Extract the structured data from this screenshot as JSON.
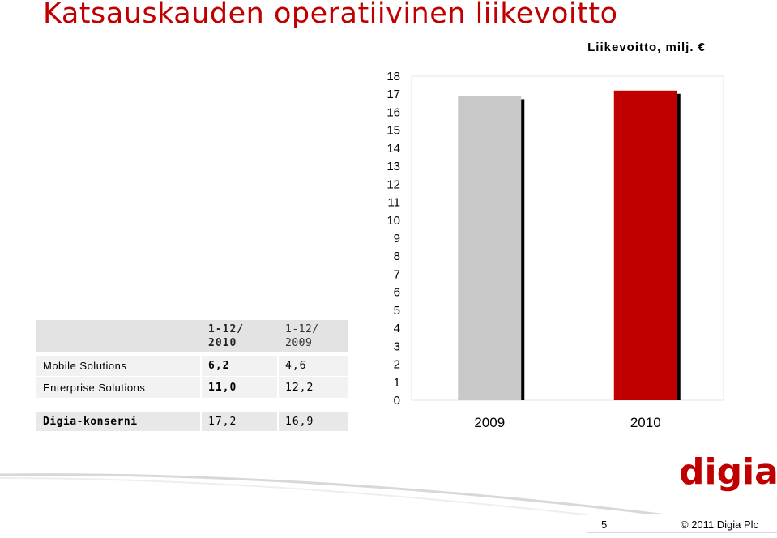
{
  "title": "Katsauskauden operatiivinen liikevoitto",
  "unit_label": "Liikevoitto, milj. €",
  "table": {
    "headers": [
      "",
      "1-12/\n2010",
      "1-12/\n2009"
    ],
    "header_2010": {
      "line1": "1-12/",
      "line2": "2010"
    },
    "header_2009": {
      "line1": "1-12/",
      "line2": "2009"
    },
    "rows": [
      {
        "label": "Mobile Solutions",
        "v2010": "6,2",
        "v2009": "4,6"
      },
      {
        "label": "Enterprise Solutions",
        "v2010": "11,0",
        "v2009": "12,2"
      },
      {
        "label": "Digia-konserni",
        "v2010": "17,2",
        "v2009": "16,9"
      }
    ]
  },
  "chart_data": {
    "type": "bar",
    "categories": [
      "2009",
      "2010"
    ],
    "values": [
      16.9,
      17.2
    ],
    "colors": [
      "#c8c8c8",
      "#c00000"
    ],
    "ylim": [
      0,
      18
    ],
    "yticks": [
      "0",
      "1",
      "2",
      "3",
      "4",
      "5",
      "6",
      "7",
      "8",
      "9",
      "10",
      "11",
      "12",
      "13",
      "14",
      "15",
      "16",
      "17",
      "18"
    ],
    "title": "",
    "xlabel": "",
    "ylabel": "",
    "grid": false
  },
  "logo_text": "digia",
  "footer": {
    "page": "5",
    "copyright": "© 2011 Digia Plc"
  },
  "colors": {
    "accent": "#c00000"
  }
}
